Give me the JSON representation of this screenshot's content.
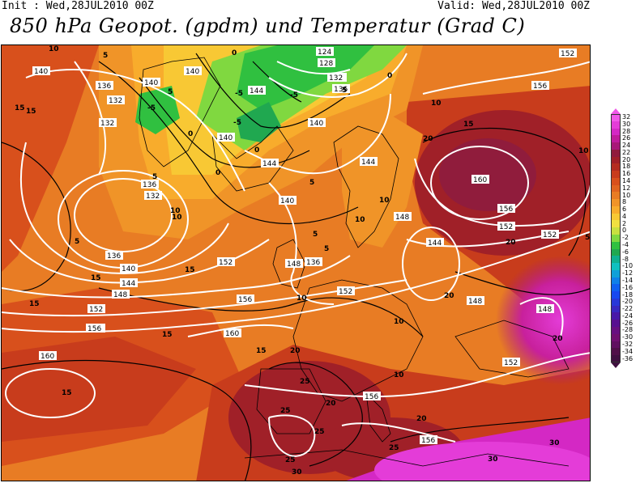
{
  "header": {
    "init": "Init : Wed,28JUL2010 00Z",
    "valid": "Valid: Wed,28JUL2010 00Z",
    "title": "850 hPa Geopot. (gpdm) und Temperatur (Grad C)"
  },
  "colorbar": {
    "labels": [
      "32",
      "30",
      "28",
      "26",
      "24",
      "22",
      "20",
      "18",
      "16",
      "14",
      "12",
      "10",
      "8",
      "6",
      "4",
      "2",
      "0",
      "-2",
      "-4",
      "-6",
      "-8",
      "-10",
      "-12",
      "-14",
      "-16",
      "-18",
      "-20",
      "-22",
      "-24",
      "-26",
      "-28",
      "-30",
      "-32",
      "-34",
      "-36"
    ],
    "colors": [
      "#f058e8",
      "#e43cd8",
      "#d428c4",
      "#c01c9c",
      "#a81878",
      "#901c3c",
      "#a02028",
      "#b42c20",
      "#c83c1c",
      "#d8501c",
      "#e06420",
      "#e87c24",
      "#f09428",
      "#f8ac2c",
      "#f8c834",
      "#f0e040",
      "#c8e040",
      "#80d840",
      "#30c040",
      "#20a850",
      "#10b090",
      "#10c0c0",
      "#10a0d8",
      "#1080e8",
      "#1060f0",
      "#1848f0",
      "#2838d8",
      "#3828c0",
      "#4818a8",
      "#581090",
      "#681080",
      "#701070",
      "#601060",
      "#501048",
      "#401040"
    ]
  },
  "map": {
    "geopotential_labels": [
      "124",
      "128",
      "132",
      "136",
      "140",
      "144",
      "148",
      "152",
      "156",
      "160"
    ],
    "temperature_labels": [
      "-5",
      "0",
      "5",
      "10",
      "15",
      "20",
      "25",
      "30"
    ],
    "geo_positions_text": [
      "140",
      "136",
      "140",
      "140",
      "132",
      "132",
      "136",
      "144",
      "140",
      "132",
      "136",
      "152",
      "156",
      "144",
      "140",
      "144",
      "136",
      "132",
      "140",
      "144",
      "148",
      "152",
      "156",
      "152",
      "152",
      "160",
      "156",
      "144",
      "148",
      "148",
      "140",
      "136",
      "152",
      "148",
      "156",
      "152",
      "156",
      "160",
      "152",
      "156",
      "156",
      "160",
      "148",
      "124",
      "128",
      "132"
    ],
    "temp_positions_text": [
      "10",
      "5",
      "5",
      "15",
      "15",
      "10",
      "10",
      "10",
      "-5",
      "-5",
      "-5",
      "0",
      "0",
      "0",
      "0",
      "5",
      "5",
      "5",
      "5",
      "5",
      "10",
      "10",
      "10",
      "10",
      "10",
      "15",
      "15",
      "15",
      "15",
      "15",
      "15",
      "15",
      "20",
      "20",
      "20",
      "20",
      "20",
      "20",
      "20",
      "25",
      "25",
      "25",
      "25",
      "25",
      "30",
      "30",
      "30",
      "5",
      "0",
      "-5",
      "5",
      "10"
    ]
  }
}
